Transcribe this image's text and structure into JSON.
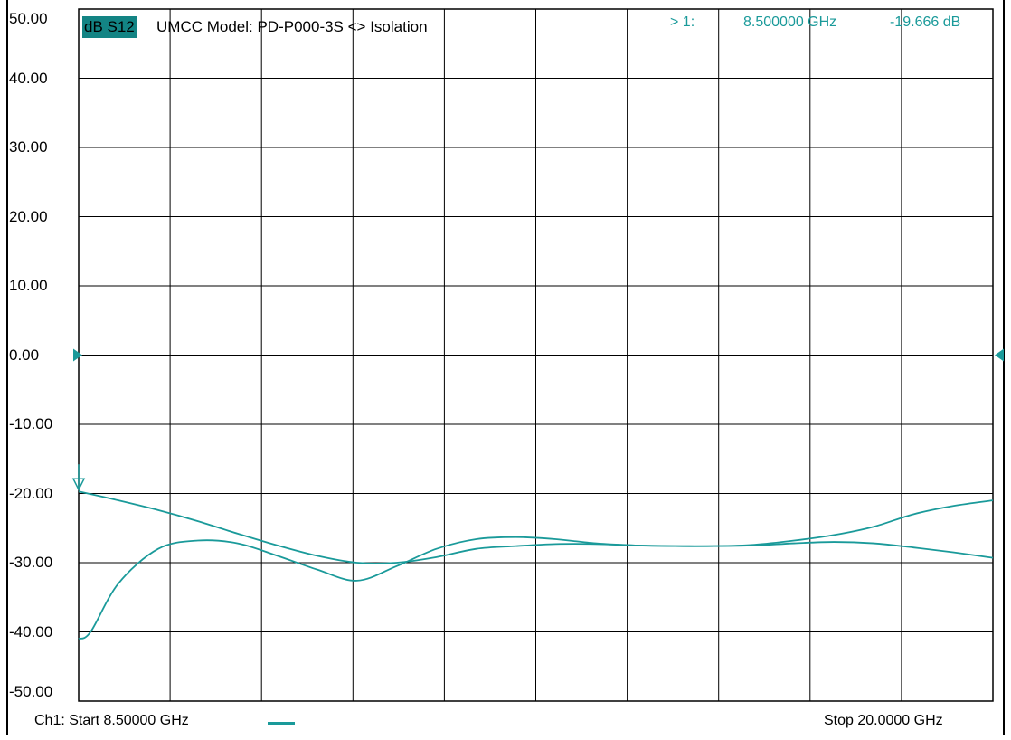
{
  "chart_data": {
    "type": "line",
    "trace_label": "dB S12",
    "title": "UMCC Model: PD-P000-3S <> Isolation",
    "marker": {
      "index": "> 1:",
      "frequency": "8.500000 GHz",
      "value": "-19.666 dB"
    },
    "start_label": "Ch1: Start  8.50000 GHz",
    "stop_label": "Stop  20.0000 GHz",
    "ylim": [
      -50,
      50
    ],
    "xlim": [
      8.5,
      20.0
    ],
    "ytick_labels": [
      "50.00",
      "40.00",
      "30.00",
      "20.00",
      "10.00",
      "0.00",
      "-10.00",
      "-20.00",
      "-30.00",
      "-40.00",
      "-50.00"
    ],
    "reference_level": 0,
    "grid": true,
    "colors": {
      "trace": "#1a9a9a",
      "tag_background": "#138484",
      "grid": "#000000"
    },
    "series": [
      {
        "x": [
          8.5,
          9.0,
          9.5,
          10.0,
          10.5,
          11.0,
          11.5,
          12.0,
          12.5,
          13.0,
          13.5,
          14.0,
          14.5,
          15.0,
          15.5,
          16.0,
          16.5,
          17.0,
          17.5,
          18.0,
          18.5,
          19.0,
          19.5,
          20.0
        ],
        "values": [
          -19.7,
          -21.0,
          -22.4,
          -24.0,
          -25.8,
          -27.5,
          -29.0,
          -30.0,
          -30.0,
          -29.2,
          -28.0,
          -27.6,
          -27.3,
          -27.3,
          -27.5,
          -27.6,
          -27.6,
          -27.4,
          -26.8,
          -26.0,
          -24.8,
          -23.0,
          -21.8,
          -21.0
        ]
      },
      {
        "x": [
          8.5,
          8.65,
          9.0,
          9.5,
          10.0,
          10.5,
          11.0,
          11.5,
          12.0,
          12.5,
          13.0,
          13.5,
          14.0,
          14.5,
          15.0,
          15.5,
          16.0,
          16.5,
          17.0,
          17.5,
          18.0,
          18.5,
          19.0,
          19.5,
          20.0
        ],
        "values": [
          -41.0,
          -40.0,
          -33.0,
          -28.0,
          -26.8,
          -27.2,
          -29.0,
          -31.0,
          -32.6,
          -30.5,
          -28.0,
          -26.6,
          -26.3,
          -26.6,
          -27.2,
          -27.5,
          -27.6,
          -27.6,
          -27.5,
          -27.2,
          -27.0,
          -27.2,
          -27.8,
          -28.5,
          -29.3
        ]
      }
    ]
  }
}
